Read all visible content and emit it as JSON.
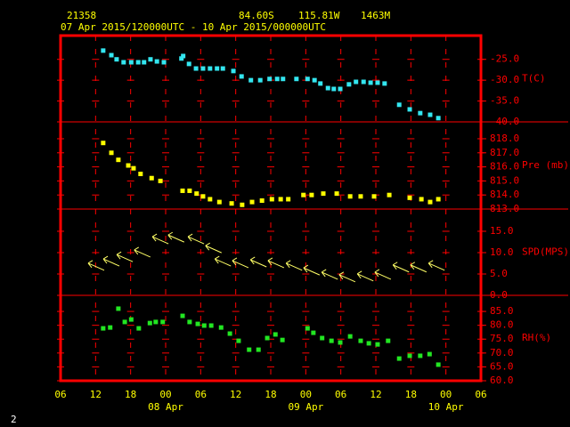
{
  "header": {
    "station": "21358",
    "lat": "84.60S",
    "lon": "115.81W",
    "elev": "1463M",
    "period": "07 Apr 2015/120000UTC - 10 Apr 2015/000000UTC"
  },
  "footer": "2",
  "x_axis": {
    "xlim": [
      6,
      78
    ],
    "xticks": [
      {
        "value": 6,
        "label": "06"
      },
      {
        "value": 12,
        "label": "12"
      },
      {
        "value": 18,
        "label": "18"
      },
      {
        "value": 24,
        "label": "00"
      },
      {
        "value": 30,
        "label": "06"
      },
      {
        "value": 36,
        "label": "12"
      },
      {
        "value": 42,
        "label": "18"
      },
      {
        "value": 48,
        "label": "00"
      },
      {
        "value": 54,
        "label": "06"
      },
      {
        "value": 60,
        "label": "12"
      },
      {
        "value": 66,
        "label": "18"
      },
      {
        "value": 72,
        "label": "00"
      },
      {
        "value": 78,
        "label": "06"
      }
    ],
    "date_labels": [
      {
        "value": 24,
        "label": "08 Apr"
      },
      {
        "value": 48,
        "label": "09 Apr"
      },
      {
        "value": 72,
        "label": "10 Apr"
      }
    ]
  },
  "chart_data": [
    {
      "type": "scatter",
      "ylim": [
        -40,
        -19.3
      ],
      "yticks": [
        {
          "value": -25,
          "label": "-25.0"
        },
        {
          "value": -30,
          "label": "-30.0"
        },
        {
          "value": -35,
          "label": "-35.0"
        },
        {
          "value": -40,
          "label": "-40.0"
        }
      ],
      "series": [
        {
          "name": "T(C)",
          "color": "#33e6f0",
          "marker": "square",
          "x": [
            13.3,
            14.7,
            15.6,
            16.8,
            18.1,
            19.3,
            20.3,
            21.4,
            22.5,
            23.7,
            26.7,
            27.0,
            28.0,
            29.2,
            30.4,
            31.6,
            32.8,
            33.8,
            35.6,
            37.0,
            38.6,
            40.2,
            41.8,
            43.1,
            44.1,
            46.4,
            48.3,
            49.5,
            50.5,
            51.8,
            52.8,
            53.9,
            55.4,
            56.6,
            57.9,
            59.1,
            60.3,
            61.5,
            64.0,
            65.8,
            67.6,
            69.3,
            70.7
          ],
          "values": [
            -22.9,
            -24.0,
            -25.0,
            -25.7,
            -25.7,
            -25.7,
            -25.7,
            -25.0,
            -25.5,
            -25.7,
            -24.8,
            -24.2,
            -26.1,
            -27.2,
            -27.2,
            -27.2,
            -27.2,
            -27.2,
            -27.8,
            -29.1,
            -30.0,
            -30.0,
            -29.7,
            -29.7,
            -29.7,
            -29.7,
            -29.7,
            -30.0,
            -30.8,
            -31.9,
            -32.1,
            -32.1,
            -31.0,
            -30.4,
            -30.4,
            -30.6,
            -30.6,
            -30.8,
            -35.9,
            -37.0,
            -37.9,
            -38.3,
            -39.1
          ]
        }
      ]
    },
    {
      "type": "scatter",
      "ylim": [
        813,
        819.2
      ],
      "yticks": [
        {
          "value": 818,
          "label": "818.0"
        },
        {
          "value": 817,
          "label": "817.0"
        },
        {
          "value": 816,
          "label": "816.0"
        },
        {
          "value": 815,
          "label": "815.0"
        },
        {
          "value": 814,
          "label": "814.0"
        },
        {
          "value": 813,
          "label": "813.0"
        }
      ],
      "series": [
        {
          "name": "Pre (mb)",
          "color": "#ffff00",
          "marker": "square",
          "x": [
            13.3,
            14.7,
            15.9,
            17.6,
            18.5,
            19.7,
            21.6,
            23.1,
            26.9,
            28.1,
            29.3,
            30.4,
            31.6,
            33.2,
            35.3,
            37.1,
            38.8,
            40.5,
            42.2,
            43.7,
            45.0,
            47.6,
            49.0,
            51.0,
            53.3,
            55.6,
            57.4,
            59.7,
            62.3,
            65.8,
            67.8,
            69.3,
            70.7
          ],
          "values": [
            817.7,
            817.0,
            816.5,
            816.1,
            815.9,
            815.5,
            815.2,
            815.0,
            814.3,
            814.3,
            814.1,
            813.9,
            813.7,
            813.5,
            813.4,
            813.3,
            813.5,
            813.6,
            813.7,
            813.7,
            813.7,
            814.0,
            814.0,
            814.1,
            814.1,
            813.9,
            813.9,
            813.9,
            814.0,
            813.8,
            813.7,
            813.5,
            813.7
          ]
        }
      ]
    },
    {
      "type": "scatter",
      "ylim": [
        0,
        20.2
      ],
      "yticks": [
        {
          "value": 15,
          "label": "15.0"
        },
        {
          "value": 10,
          "label": "10.0"
        },
        {
          "value": 5,
          "label": "5.0"
        },
        {
          "value": 0,
          "label": "0.0"
        }
      ],
      "series": [
        {
          "name": "SPD(MPS)",
          "color": "#ffff66",
          "marker": "arrow",
          "x": [
            12.1,
            14.7,
            17.0,
            20.0,
            23.1,
            25.8,
            29.2,
            32.2,
            33.8,
            36.8,
            39.9,
            42.9,
            46.0,
            49.0,
            52.1,
            55.1,
            58.2,
            61.2,
            64.3,
            67.3,
            70.4
          ],
          "values": [
            6.7,
            7.7,
            8.7,
            9.8,
            12.9,
            13.3,
            12.9,
            10.8,
            7.7,
            7.3,
            7.5,
            7.3,
            6.7,
            5.6,
            4.6,
            4.0,
            4.2,
            4.6,
            6.3,
            6.3,
            6.7
          ]
        }
      ]
    },
    {
      "type": "scatter",
      "ylim": [
        60,
        90.8
      ],
      "yticks": [
        {
          "value": 85,
          "label": "85.0"
        },
        {
          "value": 80,
          "label": "80.0"
        },
        {
          "value": 75,
          "label": "75.0"
        },
        {
          "value": 70,
          "label": "70.0"
        },
        {
          "value": 65,
          "label": "65.0"
        },
        {
          "value": 60,
          "label": "60.0"
        }
      ],
      "series": [
        {
          "name": "RH(%)",
          "color": "#22e622",
          "marker": "square",
          "x": [
            13.3,
            14.5,
            15.9,
            17.0,
            18.1,
            19.4,
            21.3,
            22.3,
            23.5,
            26.9,
            28.1,
            29.5,
            30.6,
            31.8,
            33.5,
            35.0,
            36.5,
            38.3,
            39.9,
            41.4,
            42.8,
            44.0,
            48.3,
            49.3,
            50.8,
            52.4,
            53.9,
            55.6,
            57.4,
            58.8,
            60.3,
            62.1,
            64.0,
            65.8,
            67.6,
            69.2,
            70.7
          ],
          "values": [
            78.9,
            79.2,
            86.0,
            81.2,
            82.1,
            78.9,
            80.8,
            81.2,
            81.2,
            83.4,
            81.2,
            80.5,
            79.9,
            79.9,
            79.2,
            77.0,
            74.4,
            71.2,
            71.2,
            75.4,
            76.7,
            74.7,
            78.9,
            77.3,
            75.4,
            74.4,
            73.8,
            76.0,
            74.4,
            73.5,
            73.1,
            74.4,
            68.0,
            69.0,
            69.0,
            69.6,
            65.8
          ]
        }
      ]
    }
  ]
}
